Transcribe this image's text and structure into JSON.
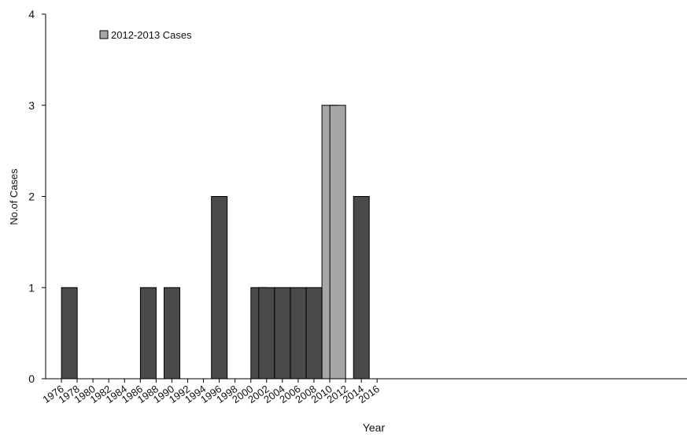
{
  "chart_data": {
    "type": "bar",
    "title": "",
    "xlabel": "Year",
    "ylabel": "No.of Cases",
    "ylim": [
      0,
      4
    ],
    "y_ticks": [
      0,
      1,
      2,
      3,
      4
    ],
    "x_tick_labels": [
      "1976",
      "1978",
      "1980",
      "1982",
      "1984",
      "1986",
      "1988",
      "1990",
      "1992",
      "1994",
      "1996",
      "1998",
      "2000",
      "2002",
      "2004",
      "2006",
      "2008",
      "2010",
      "2012",
      "2014",
      "2016"
    ],
    "categories": [
      "1976",
      "1977",
      "1978",
      "1979",
      "1980",
      "1981",
      "1982",
      "1983",
      "1984",
      "1985",
      "1986",
      "1987",
      "1988",
      "1989",
      "1990",
      "1991",
      "1992",
      "1993",
      "1994",
      "1995",
      "1996",
      "1997",
      "1998",
      "1999",
      "2000",
      "2001",
      "2002",
      "2003",
      "2004",
      "2005",
      "2006",
      "2007",
      "2008",
      "2009",
      "2010",
      "2011",
      "2012",
      "2013",
      "2014",
      "2015",
      "2016"
    ],
    "series": [
      {
        "values": [
          0,
          0,
          0,
          1,
          0,
          0,
          0,
          0,
          0,
          0,
          0,
          0,
          0,
          1,
          0,
          0,
          1,
          0,
          0,
          0,
          0,
          0,
          2,
          0,
          0,
          0,
          0,
          1,
          1,
          0,
          1,
          0,
          1,
          0,
          1,
          0,
          0,
          0,
          0,
          0,
          2
        ],
        "color": "#4a4a4a"
      },
      {
        "name": "2012-2013 Cases",
        "values": [
          0,
          0,
          0,
          0,
          0,
          0,
          0,
          0,
          0,
          0,
          0,
          0,
          0,
          0,
          0,
          0,
          0,
          0,
          0,
          0,
          0,
          0,
          0,
          0,
          0,
          0,
          0,
          0,
          0,
          0,
          0,
          0,
          0,
          0,
          0,
          0,
          3,
          3,
          0,
          0,
          0
        ],
        "color": "#a6a6a6"
      }
    ],
    "legend": {
      "position": "top-left",
      "entries": [
        "2012-2013 Cases"
      ]
    },
    "grid": false
  }
}
